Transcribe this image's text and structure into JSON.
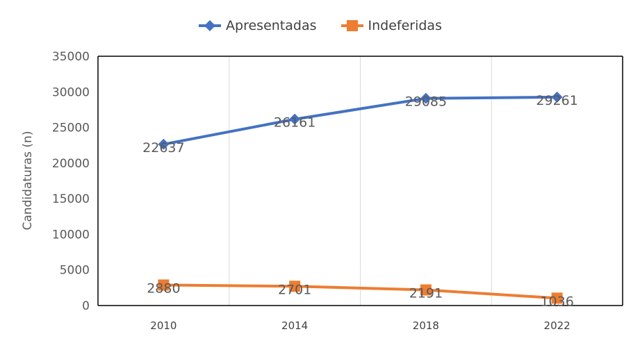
{
  "chart_data": {
    "type": "line",
    "title": "",
    "xlabel": "",
    "ylabel": "Candidaturas (n)",
    "categories": [
      "2010",
      "2014",
      "2018",
      "2022"
    ],
    "ylim": [
      0,
      35000
    ],
    "yticks": [
      "0",
      "5000",
      "10000",
      "15000",
      "20000",
      "25000",
      "30000",
      "35000"
    ],
    "grid": "vertical",
    "legend_position": "top",
    "series": [
      {
        "name": "Apresentadas",
        "values": [
          22637,
          26161,
          29085,
          29261
        ],
        "labels": [
          "22637",
          "26161",
          "29085",
          "29261"
        ],
        "color": "#4472C4",
        "marker": "diamond"
      },
      {
        "name": "Indeferidas",
        "values": [
          2880,
          2701,
          2191,
          1036
        ],
        "labels": [
          "2880",
          "2701",
          "2191",
          "1036"
        ],
        "color": "#ED7D31",
        "marker": "square"
      }
    ]
  }
}
